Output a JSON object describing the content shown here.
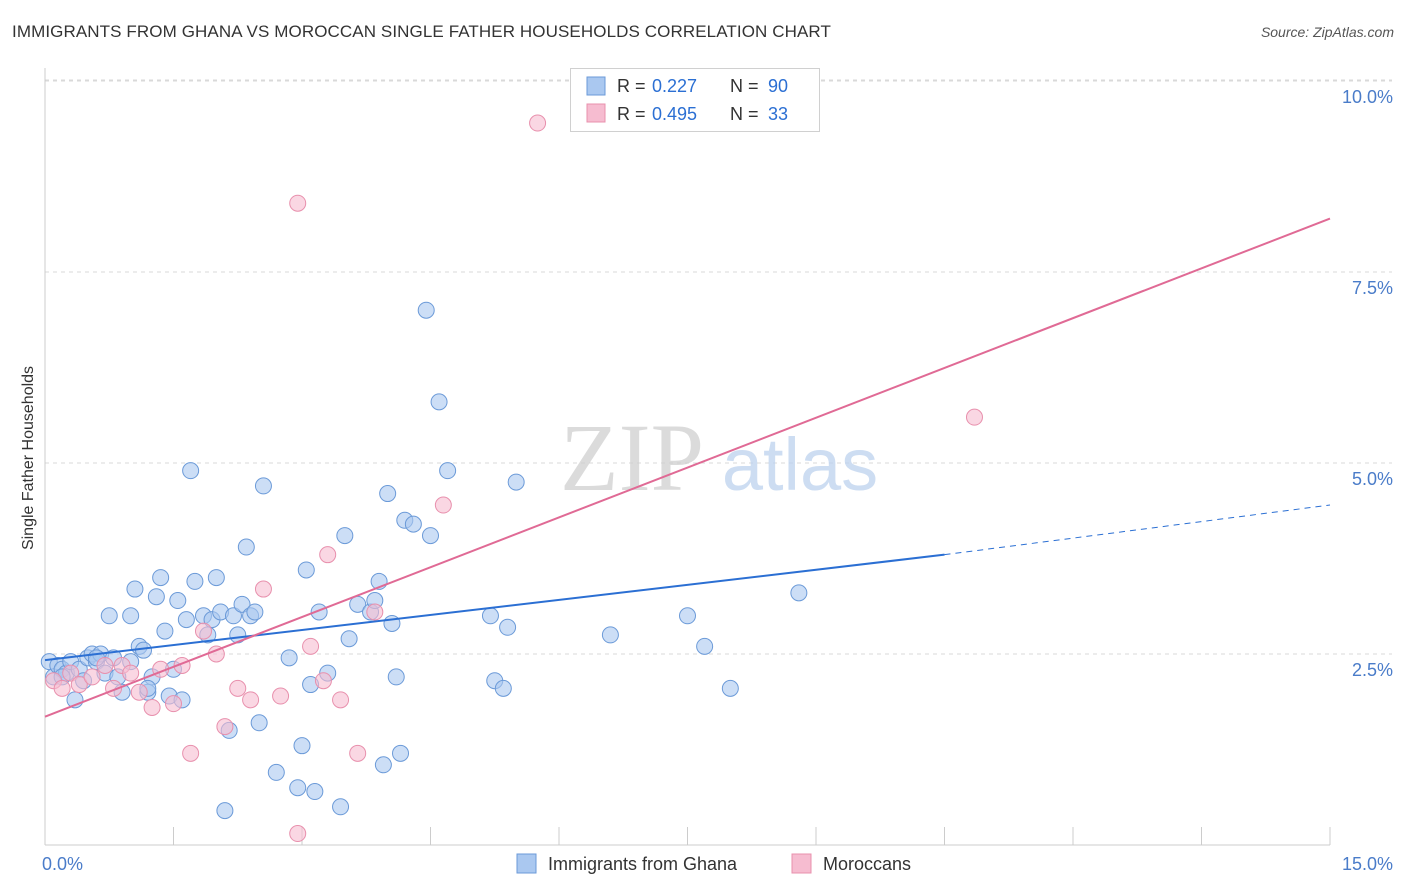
{
  "header": {
    "title": "IMMIGRANTS FROM GHANA VS MOROCCAN SINGLE FATHER HOUSEHOLDS CORRELATION CHART",
    "source": "Source: ZipAtlas.com"
  },
  "watermark": {
    "zip": "ZIP",
    "atlas": "atlas"
  },
  "colors": {
    "ghana_fill": "#aac8f0",
    "ghana_stroke": "#6b9ad8",
    "ghana_line": "#2b6fd3",
    "moroccan_fill": "#f6bcd0",
    "moroccan_stroke": "#e890ad",
    "moroccan_line": "#e06a95",
    "tick_label": "#4a7cc9",
    "grid": "#d9d9d9"
  },
  "legend": {
    "rows": [
      {
        "r_label": "R =",
        "r_value": "0.227",
        "n_label": "N =",
        "n_value": "90"
      },
      {
        "r_label": "R =",
        "r_value": "0.495",
        "n_label": "N =",
        "n_value": "33"
      }
    ]
  },
  "chart_data": {
    "type": "scatter",
    "title": "IMMIGRANTS FROM GHANA VS MOROCCAN SINGLE FATHER HOUSEHOLDS CORRELATION CHART",
    "xlabel": "",
    "ylabel": "Single Father Households",
    "xlim": [
      0,
      15
    ],
    "ylim": [
      0,
      10.5
    ],
    "x_tick_labels": [
      "0.0%",
      "15.0%"
    ],
    "y_ticks": [
      2.5,
      5.0,
      7.5,
      10.0
    ],
    "y_tick_labels": [
      "2.5%",
      "5.0%",
      "7.5%",
      "10.0%"
    ],
    "grid": true,
    "legend_position": "top-center",
    "series": [
      {
        "name": "Immigrants from Ghana",
        "r": 0.227,
        "n": 90,
        "trend": {
          "x0": 0,
          "y0": 2.42,
          "x1": 10.5,
          "y1": 3.8,
          "dashed_to_x": 15,
          "dashed_to_y": 4.45
        },
        "points": [
          [
            0.05,
            2.4
          ],
          [
            0.1,
            2.2
          ],
          [
            0.15,
            2.35
          ],
          [
            0.2,
            2.3
          ],
          [
            0.25,
            2.25
          ],
          [
            0.3,
            2.4
          ],
          [
            0.35,
            1.9
          ],
          [
            0.4,
            2.3
          ],
          [
            0.45,
            2.15
          ],
          [
            0.5,
            2.45
          ],
          [
            0.55,
            2.5
          ],
          [
            0.6,
            2.4
          ],
          [
            0.65,
            2.5
          ],
          [
            0.7,
            2.25
          ],
          [
            0.75,
            3.0
          ],
          [
            0.8,
            2.45
          ],
          [
            0.85,
            2.2
          ],
          [
            0.9,
            2.0
          ],
          [
            1.0,
            3.0
          ],
          [
            1.05,
            3.35
          ],
          [
            1.1,
            2.6
          ],
          [
            1.15,
            2.55
          ],
          [
            1.2,
            2.0
          ],
          [
            1.25,
            2.2
          ],
          [
            1.3,
            3.25
          ],
          [
            1.35,
            3.5
          ],
          [
            1.4,
            2.8
          ],
          [
            1.45,
            1.95
          ],
          [
            1.5,
            2.3
          ],
          [
            1.55,
            3.2
          ],
          [
            1.6,
            1.9
          ],
          [
            1.65,
            2.95
          ],
          [
            1.7,
            4.9
          ],
          [
            1.75,
            3.45
          ],
          [
            1.85,
            3.0
          ],
          [
            1.9,
            2.75
          ],
          [
            1.95,
            2.95
          ],
          [
            2.0,
            3.5
          ],
          [
            2.05,
            3.05
          ],
          [
            2.1,
            0.45
          ],
          [
            2.15,
            1.5
          ],
          [
            2.2,
            3.0
          ],
          [
            2.25,
            2.75
          ],
          [
            2.3,
            3.15
          ],
          [
            2.35,
            3.9
          ],
          [
            2.4,
            3.0
          ],
          [
            2.45,
            3.05
          ],
          [
            2.5,
            1.6
          ],
          [
            2.55,
            4.7
          ],
          [
            2.7,
            0.95
          ],
          [
            2.85,
            2.45
          ],
          [
            2.95,
            0.75
          ],
          [
            3.0,
            1.3
          ],
          [
            3.05,
            3.6
          ],
          [
            3.1,
            2.1
          ],
          [
            3.15,
            0.7
          ],
          [
            3.2,
            3.05
          ],
          [
            3.3,
            2.25
          ],
          [
            3.45,
            0.5
          ],
          [
            3.5,
            4.05
          ],
          [
            3.55,
            2.7
          ],
          [
            3.65,
            3.15
          ],
          [
            3.8,
            3.05
          ],
          [
            3.85,
            3.2
          ],
          [
            3.9,
            3.45
          ],
          [
            3.95,
            1.05
          ],
          [
            4.0,
            4.6
          ],
          [
            4.05,
            2.9
          ],
          [
            4.1,
            2.2
          ],
          [
            4.15,
            1.2
          ],
          [
            4.2,
            4.25
          ],
          [
            4.3,
            4.2
          ],
          [
            4.45,
            7.0
          ],
          [
            4.5,
            4.05
          ],
          [
            4.6,
            5.8
          ],
          [
            4.7,
            4.9
          ],
          [
            5.2,
            3.0
          ],
          [
            5.25,
            2.15
          ],
          [
            5.35,
            2.05
          ],
          [
            5.4,
            2.85
          ],
          [
            5.5,
            4.75
          ],
          [
            6.6,
            2.75
          ],
          [
            7.5,
            3.0
          ],
          [
            7.7,
            2.6
          ],
          [
            8.0,
            2.05
          ],
          [
            8.8,
            3.3
          ],
          [
            0.2,
            2.2
          ],
          [
            0.6,
            2.45
          ],
          [
            1.0,
            2.4
          ],
          [
            1.2,
            2.05
          ]
        ]
      },
      {
        "name": "Moroccans",
        "r": 0.495,
        "n": 33,
        "trend": {
          "x0": 0,
          "y0": 1.68,
          "x1": 15,
          "y1": 8.2
        },
        "points": [
          [
            0.1,
            2.15
          ],
          [
            0.2,
            2.05
          ],
          [
            0.3,
            2.25
          ],
          [
            0.4,
            2.1
          ],
          [
            0.55,
            2.2
          ],
          [
            0.7,
            2.35
          ],
          [
            0.8,
            2.05
          ],
          [
            0.9,
            2.35
          ],
          [
            1.0,
            2.25
          ],
          [
            1.1,
            2.0
          ],
          [
            1.25,
            1.8
          ],
          [
            1.35,
            2.3
          ],
          [
            1.5,
            1.85
          ],
          [
            1.6,
            2.35
          ],
          [
            1.7,
            1.2
          ],
          [
            1.85,
            2.8
          ],
          [
            2.0,
            2.5
          ],
          [
            2.1,
            1.55
          ],
          [
            2.25,
            2.05
          ],
          [
            2.4,
            1.9
          ],
          [
            2.55,
            3.35
          ],
          [
            2.75,
            1.95
          ],
          [
            2.95,
            8.4
          ],
          [
            2.95,
            0.15
          ],
          [
            3.1,
            2.6
          ],
          [
            3.25,
            2.15
          ],
          [
            3.3,
            3.8
          ],
          [
            3.45,
            1.9
          ],
          [
            3.65,
            1.2
          ],
          [
            3.85,
            3.05
          ],
          [
            4.65,
            4.45
          ],
          [
            5.75,
            9.45
          ],
          [
            10.85,
            5.6
          ]
        ]
      }
    ]
  }
}
